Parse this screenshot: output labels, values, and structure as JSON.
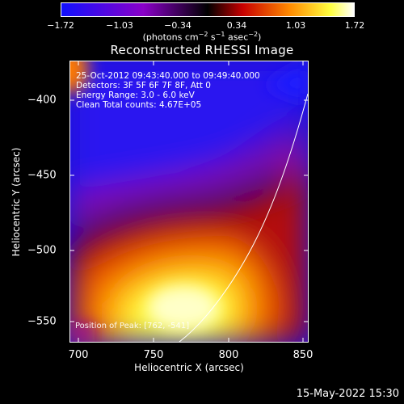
{
  "colorbar": {
    "ticks": [
      "−1.72",
      "−1.03",
      "−0.34",
      "0.34",
      "1.03",
      "1.72"
    ],
    "unit_prefix": "(photons cm",
    "unit_exp1": "−2",
    "unit_mid": " s",
    "unit_exp2": "−1",
    "unit_mid2": " asec",
    "unit_exp3": "−2",
    "unit_suffix": ")"
  },
  "title": "Reconstructed RHESSI Image",
  "info": {
    "time_range": "25-Oct-2012 09:43:40.000 to 09:49:40.000",
    "detectors": "Detectors: 3F 5F 6F 7F 8F, Att 0",
    "energy": "Energy Range: 3.0 - 6.0 keV",
    "clean": "Clean    Total counts: 4.67E+05"
  },
  "position_note": "Position of Peak: [762, -541]",
  "axes": {
    "x_title": "Heliocentric X (arcsec)",
    "y_title": "Heliocentric Y (arcsec)",
    "x_ticks": [
      "700",
      "750",
      "800",
      "850"
    ],
    "y_ticks": [
      "−400",
      "−450",
      "−500",
      "−550"
    ]
  },
  "footer": "15-May-2022 15:30"
}
